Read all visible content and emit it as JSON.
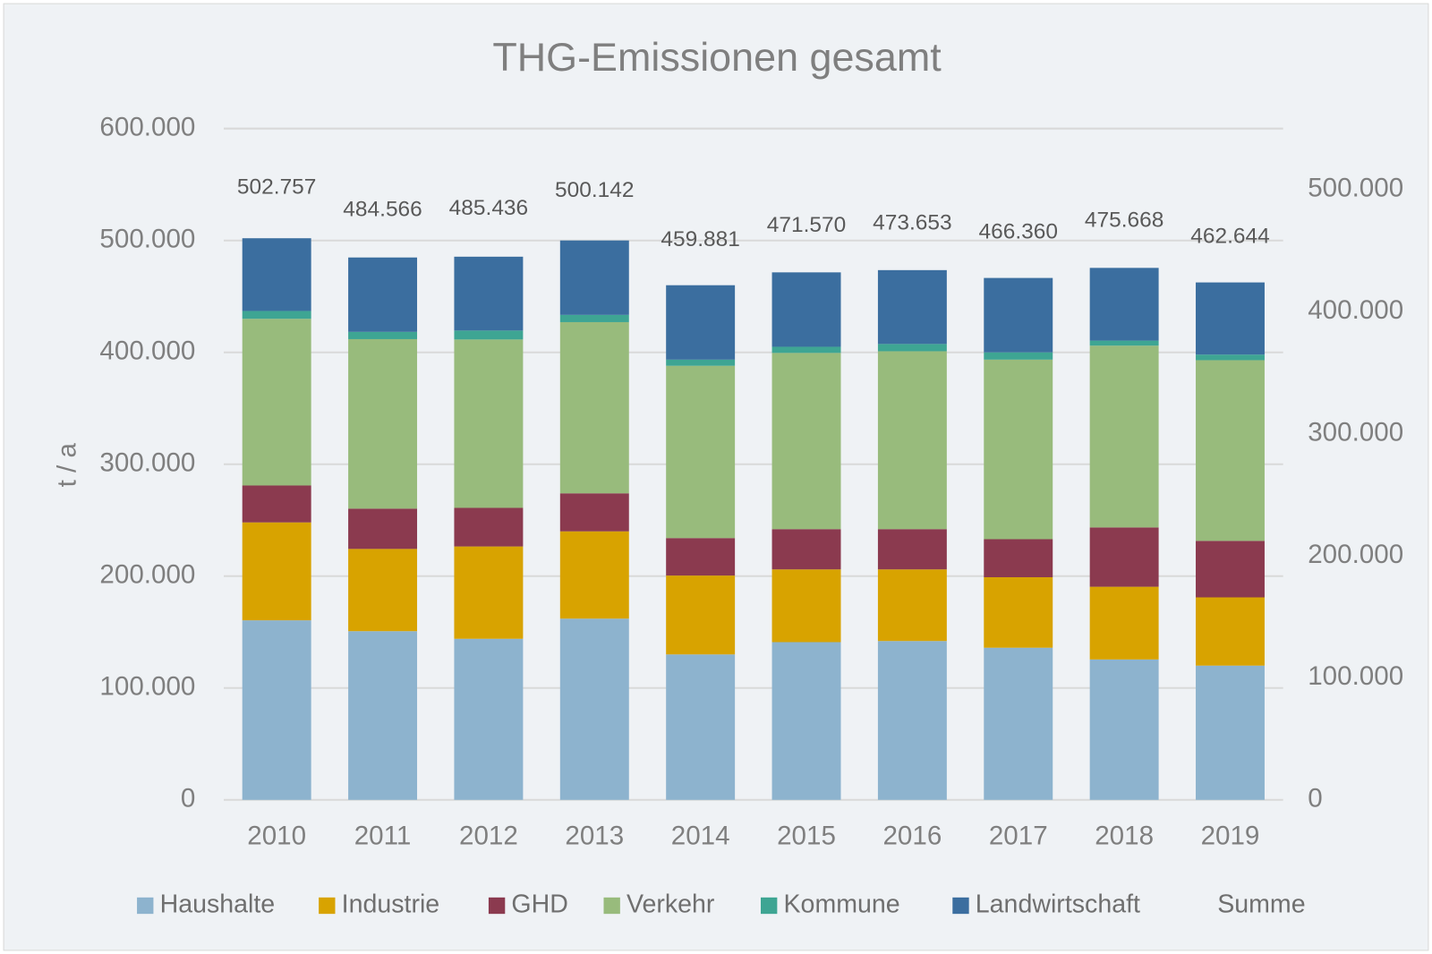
{
  "chart_data": {
    "type": "bar",
    "stacked": true,
    "title": "THG-Emissionen gesamt",
    "y_label": "t / a",
    "categories": [
      "2010",
      "2011",
      "2012",
      "2013",
      "2014",
      "2015",
      "2016",
      "2017",
      "2018",
      "2019"
    ],
    "series": [
      {
        "name": "Haushalte",
        "color": "#8db3ce",
        "values": [
          160500,
          150800,
          144000,
          162000,
          130000,
          141000,
          142000,
          136000,
          125500,
          120000
        ]
      },
      {
        "name": "Industrie",
        "color": "#d8a300",
        "values": [
          87500,
          73500,
          82500,
          78000,
          70500,
          65000,
          64000,
          63000,
          65000,
          61000
        ]
      },
      {
        "name": "GHD",
        "color": "#8b3a4f",
        "values": [
          33000,
          36000,
          34500,
          34000,
          33500,
          36000,
          36000,
          34000,
          53000,
          50500
        ]
      },
      {
        "name": "Verkehr",
        "color": "#98bb7c",
        "values": [
          149000,
          151500,
          150500,
          153000,
          154000,
          157500,
          159000,
          160500,
          162500,
          161500
        ]
      },
      {
        "name": "Kommune",
        "color": "#3ea593",
        "values": [
          7000,
          6500,
          8000,
          6500,
          5500,
          5500,
          6500,
          6500,
          4500,
          5000
        ]
      },
      {
        "name": "Landwirtschaft",
        "color": "#3b6e9f",
        "values": [
          65000,
          66500,
          66000,
          66500,
          66500,
          66500,
          66000,
          66500,
          65000,
          64500
        ]
      },
      {
        "name": "Summe",
        "type": "line",
        "axis": "y2",
        "values": [
          502757,
          484566,
          485436,
          500142,
          459881,
          471570,
          473653,
          466360,
          475668,
          462644
        ],
        "value_labels": [
          "502.757",
          "484.566",
          "485.436",
          "500.142",
          "459.881",
          "471.570",
          "473.653",
          "466.360",
          "475.668",
          "462.644"
        ]
      }
    ],
    "ylim": [
      0,
      600000
    ],
    "yticks": [
      0,
      {
        "value": 100000,
        "label": "100.000"
      },
      {
        "value": 200000,
        "label": "200.000"
      },
      {
        "value": 300000,
        "label": "300.000"
      },
      {
        "value": 400000,
        "label": "400.000"
      },
      {
        "value": 500000,
        "label": "500.000"
      },
      {
        "value": 600000,
        "label": "600.000"
      }
    ],
    "y2lim": [
      0,
      550000
    ],
    "y2ticks": [
      0,
      {
        "value": 100000,
        "label": "100.000"
      },
      {
        "value": 200000,
        "label": "200.000"
      },
      {
        "value": 300000,
        "label": "300.000"
      },
      {
        "value": 400000,
        "label": "400.000"
      },
      {
        "value": 500000,
        "label": "500.000"
      }
    ],
    "grid": true,
    "legend": "bottom"
  }
}
